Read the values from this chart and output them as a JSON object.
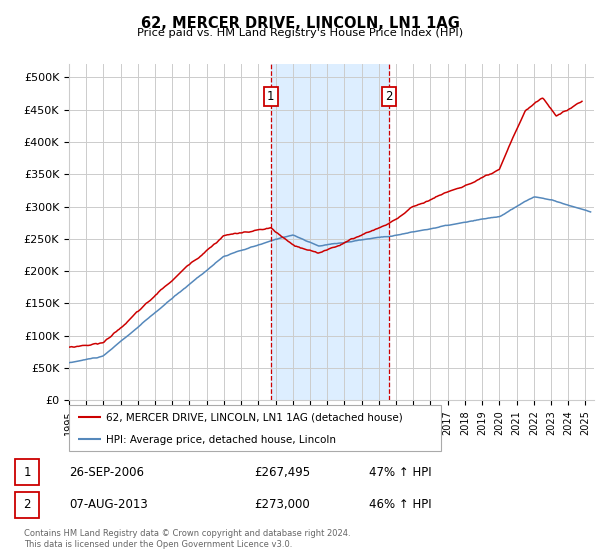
{
  "title": "62, MERCER DRIVE, LINCOLN, LN1 1AG",
  "subtitle": "Price paid vs. HM Land Registry's House Price Index (HPI)",
  "ylabel_ticks": [
    "£0",
    "£50K",
    "£100K",
    "£150K",
    "£200K",
    "£250K",
    "£300K",
    "£350K",
    "£400K",
    "£450K",
    "£500K"
  ],
  "ytick_values": [
    0,
    50000,
    100000,
    150000,
    200000,
    250000,
    300000,
    350000,
    400000,
    450000,
    500000
  ],
  "ylim": [
    0,
    520000
  ],
  "xlim_start": 1995.0,
  "xlim_end": 2025.5,
  "marker1_x": 2006.73,
  "marker1_y": 267495,
  "marker2_x": 2013.59,
  "marker2_y": 273000,
  "marker1_date": "26-SEP-2006",
  "marker1_price": "£267,495",
  "marker1_hpi": "47% ↑ HPI",
  "marker2_date": "07-AUG-2013",
  "marker2_price": "£273,000",
  "marker2_hpi": "46% ↑ HPI",
  "legend_line1": "62, MERCER DRIVE, LINCOLN, LN1 1AG (detached house)",
  "legend_line2": "HPI: Average price, detached house, Lincoln",
  "footer": "Contains HM Land Registry data © Crown copyright and database right 2024.\nThis data is licensed under the Open Government Licence v3.0.",
  "line_color_red": "#cc0000",
  "line_color_blue": "#5588bb",
  "shaded_color": "#ddeeff",
  "marker_box_color": "#cc0000",
  "grid_color": "#cccccc"
}
